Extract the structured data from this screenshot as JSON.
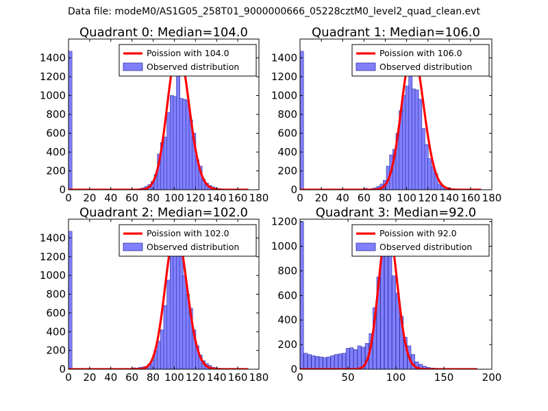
{
  "figure": {
    "suptitle": "Data file: modeM0/AS1G05_258T01_9000000666_05228cztM0_level2_quad_clean.evt"
  },
  "colors": {
    "hist_fill": "#8080ff",
    "hist_edge": "#2a2a9a",
    "poisson_line": "#ff0000",
    "axes": "#000000"
  },
  "chart_data": [
    {
      "type": "histogram+line",
      "title": "Quadrant 0: Median=104.0",
      "xlim": [
        0,
        180
      ],
      "ylim": [
        0,
        1600
      ],
      "xticks": [
        0,
        20,
        40,
        60,
        80,
        100,
        120,
        140,
        160,
        180
      ],
      "yticks": [
        0,
        200,
        400,
        600,
        800,
        1000,
        1200,
        1400
      ],
      "legend": {
        "position": "top-right",
        "entries": [
          "Poission with 104.0",
          "Observed distribution"
        ]
      },
      "bin_width": 3.33,
      "histogram": {
        "name": "Observed distribution",
        "bins_start": [
          0,
          60,
          63,
          66,
          69,
          72,
          75,
          78,
          81,
          84,
          87,
          90,
          93,
          96,
          99,
          102,
          105,
          108,
          111,
          114,
          117,
          120,
          123,
          126,
          129,
          132,
          135,
          138,
          141,
          144,
          147,
          150,
          156,
          162
        ],
        "counts": [
          1470,
          5,
          8,
          12,
          20,
          35,
          55,
          90,
          160,
          380,
          500,
          560,
          820,
          1000,
          990,
          1420,
          970,
          960,
          950,
          740,
          600,
          320,
          250,
          110,
          70,
          45,
          30,
          18,
          12,
          8,
          5,
          3,
          2,
          2
        ]
      },
      "poisson": {
        "name": "Poission with 104.0",
        "mean": 104.0,
        "peak": 1500,
        "x_range": [
          0,
          170
        ]
      }
    },
    {
      "type": "histogram+line",
      "title": "Quadrant 1: Median=106.0",
      "xlim": [
        0,
        180
      ],
      "ylim": [
        0,
        1600
      ],
      "xticks": [
        0,
        20,
        40,
        60,
        80,
        100,
        120,
        140,
        160,
        180
      ],
      "yticks": [
        0,
        200,
        400,
        600,
        800,
        1000,
        1200,
        1400
      ],
      "legend": {
        "position": "top-right",
        "entries": [
          "Poission with 106.0",
          "Observed distribution"
        ]
      },
      "bin_width": 3.33,
      "histogram": {
        "name": "Observed distribution",
        "bins_start": [
          0,
          60,
          63,
          66,
          69,
          72,
          75,
          78,
          81,
          84,
          87,
          90,
          93,
          96,
          99,
          102,
          105,
          108,
          111,
          114,
          117,
          120,
          123,
          126,
          129,
          132,
          135,
          138,
          141,
          144,
          147,
          150,
          156,
          162
        ],
        "counts": [
          1470,
          15,
          8,
          12,
          20,
          35,
          60,
          100,
          250,
          370,
          430,
          600,
          840,
          1000,
          1100,
          1500,
          1070,
          1060,
          960,
          650,
          480,
          330,
          250,
          170,
          60,
          40,
          25,
          18,
          10,
          6,
          4,
          3,
          2,
          2
        ]
      },
      "poisson": {
        "name": "Poission with 106.0",
        "mean": 106.0,
        "peak": 1480,
        "x_range": [
          0,
          170
        ]
      }
    },
    {
      "type": "histogram+line",
      "title": "Quadrant 2: Median=102.0",
      "xlim": [
        0,
        180
      ],
      "ylim": [
        0,
        1600
      ],
      "xticks": [
        0,
        20,
        40,
        60,
        80,
        100,
        120,
        140,
        160,
        180
      ],
      "yticks": [
        0,
        200,
        400,
        600,
        800,
        1000,
        1200,
        1400
      ],
      "legend": {
        "position": "top-right",
        "entries": [
          "Poission with 102.0",
          "Observed distribution"
        ]
      },
      "bin_width": 3.33,
      "histogram": {
        "name": "Observed distribution",
        "bins_start": [
          0,
          60,
          63,
          66,
          69,
          72,
          75,
          78,
          81,
          84,
          87,
          90,
          93,
          96,
          99,
          102,
          105,
          108,
          111,
          114,
          117,
          120,
          123,
          126,
          129,
          132,
          135,
          138,
          141,
          144,
          147,
          150,
          156,
          162
        ],
        "counts": [
          1470,
          15,
          12,
          20,
          25,
          30,
          55,
          100,
          200,
          300,
          420,
          680,
          950,
          1420,
          1440,
          1350,
          1230,
          1000,
          800,
          650,
          420,
          250,
          150,
          90,
          60,
          40,
          20,
          15,
          10,
          6,
          4,
          3,
          2,
          2
        ]
      },
      "poisson": {
        "name": "Poission with 102.0",
        "mean": 102.0,
        "peak": 1490,
        "x_range": [
          0,
          170
        ]
      }
    },
    {
      "type": "histogram+line",
      "title": "Quadrant 3: Median=92.0",
      "xlim": [
        0,
        200
      ],
      "ylim": [
        0,
        1220
      ],
      "xticks": [
        0,
        50,
        100,
        150,
        200
      ],
      "yticks": [
        0,
        200,
        400,
        600,
        800,
        1000,
        1200
      ],
      "legend": {
        "position": "top-right",
        "entries": [
          "Poission with 92.0",
          "Observed distribution"
        ]
      },
      "bin_width": 3.7,
      "histogram": {
        "name": "Observed distribution",
        "bins_start": [
          0,
          4,
          8,
          12,
          16,
          20,
          24,
          28,
          32,
          36,
          40,
          44,
          48,
          52,
          56,
          60,
          64,
          68,
          72,
          76,
          80,
          84,
          88,
          92,
          96,
          100,
          104,
          108,
          112,
          116,
          120,
          124,
          128,
          132,
          136,
          140,
          144,
          148,
          152,
          156,
          160,
          164,
          168,
          172,
          176,
          180
        ],
        "counts": [
          1200,
          130,
          120,
          110,
          105,
          100,
          95,
          100,
          110,
          120,
          125,
          130,
          170,
          175,
          160,
          190,
          180,
          210,
          290,
          500,
          750,
          980,
          1080,
          960,
          760,
          620,
          430,
          260,
          190,
          120,
          60,
          40,
          25,
          15,
          10,
          8,
          6,
          5,
          4,
          3,
          3,
          2,
          2,
          2,
          2,
          2
        ]
      },
      "poisson": {
        "name": "Poission with 92.0",
        "mean": 92.0,
        "peak": 1170,
        "x_range": [
          0,
          185
        ]
      }
    }
  ]
}
